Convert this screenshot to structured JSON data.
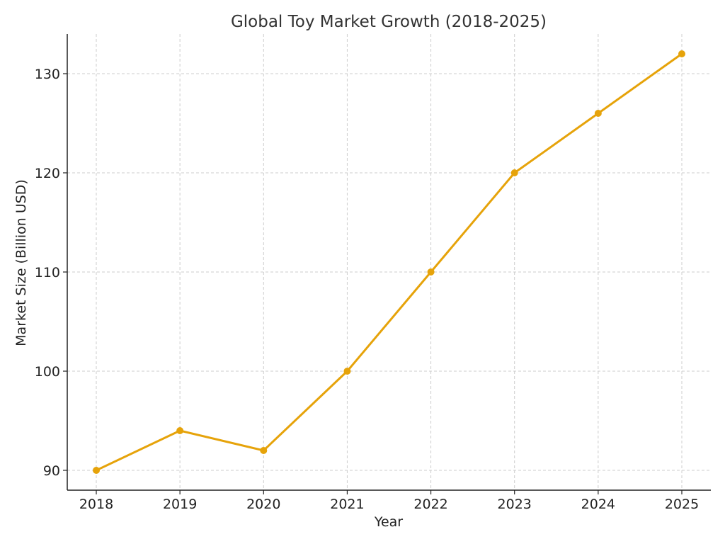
{
  "chart_data": {
    "type": "line",
    "title": "Global Toy Market Growth (2018-2025)",
    "xlabel": "Year",
    "ylabel": "Market Size (Billion USD)",
    "categories": [
      "2018",
      "2019",
      "2020",
      "2021",
      "2022",
      "2023",
      "2024",
      "2025"
    ],
    "series": [
      {
        "values": [
          90,
          94,
          92,
          100,
          110,
          120,
          126,
          132
        ],
        "color": "#e6a30a",
        "marker": "circle"
      }
    ],
    "yticks": [
      90,
      100,
      110,
      120,
      130
    ],
    "ylim": [
      88,
      134
    ],
    "grid": true,
    "legend": "none"
  }
}
